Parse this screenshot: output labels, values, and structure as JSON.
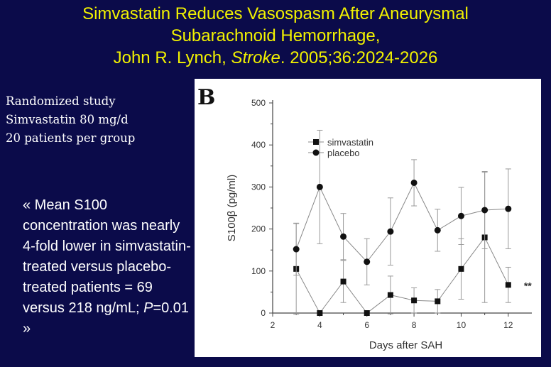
{
  "slide": {
    "title_line1": "Simvastatin Reduces Vasospasm After Aneurysmal",
    "title_line2": "Subarachnoid Hemorrhage,",
    "title_line3_a": "John R. Lynch, ",
    "title_line3_b": "Stroke",
    "title_line3_c": ". 2005;36:2024-2026",
    "study_lines": [
      "Randomized study",
      "Simvastatin 80 mg/d",
      "20 patients per group"
    ],
    "quote_a": "« Mean S100 concentration was nearly 4-fold lower in simvastatin-treated versus placebo-treated patients = 69 versus 218 ng/mL; ",
    "quote_b": "P",
    "quote_c": "=0.01 »",
    "colors": {
      "background": "#0b0b4a",
      "title": "#f2f200",
      "text": "#ffffff"
    }
  },
  "chart_data": {
    "type": "line",
    "panel_label": "B",
    "xlabel": "Days after SAH",
    "ylabel": "S100β (pg/ml)",
    "xlim": [
      2,
      13
    ],
    "ylim": [
      0,
      500
    ],
    "x_ticks": [
      2,
      4,
      6,
      8,
      10,
      12
    ],
    "y_ticks": [
      0,
      100,
      200,
      300,
      400,
      500
    ],
    "x": [
      3,
      4,
      5,
      6,
      7,
      8,
      9,
      10,
      11,
      12
    ],
    "series": [
      {
        "name": "simvastatin",
        "marker": "square",
        "values": [
          105,
          0,
          75,
          0,
          43,
          30,
          28,
          105,
          180,
          67
        ],
        "errors": [
          108,
          0,
          50,
          0,
          45,
          30,
          28,
          72,
          155,
          42
        ]
      },
      {
        "name": "placebo",
        "marker": "circle",
        "values": [
          152,
          300,
          182,
          122,
          194,
          310,
          197,
          231,
          245,
          248
        ],
        "errors": [
          62,
          135,
          55,
          55,
          80,
          55,
          50,
          68,
          92,
          95
        ]
      }
    ],
    "annotation": "**",
    "legend_position": "top-left"
  }
}
